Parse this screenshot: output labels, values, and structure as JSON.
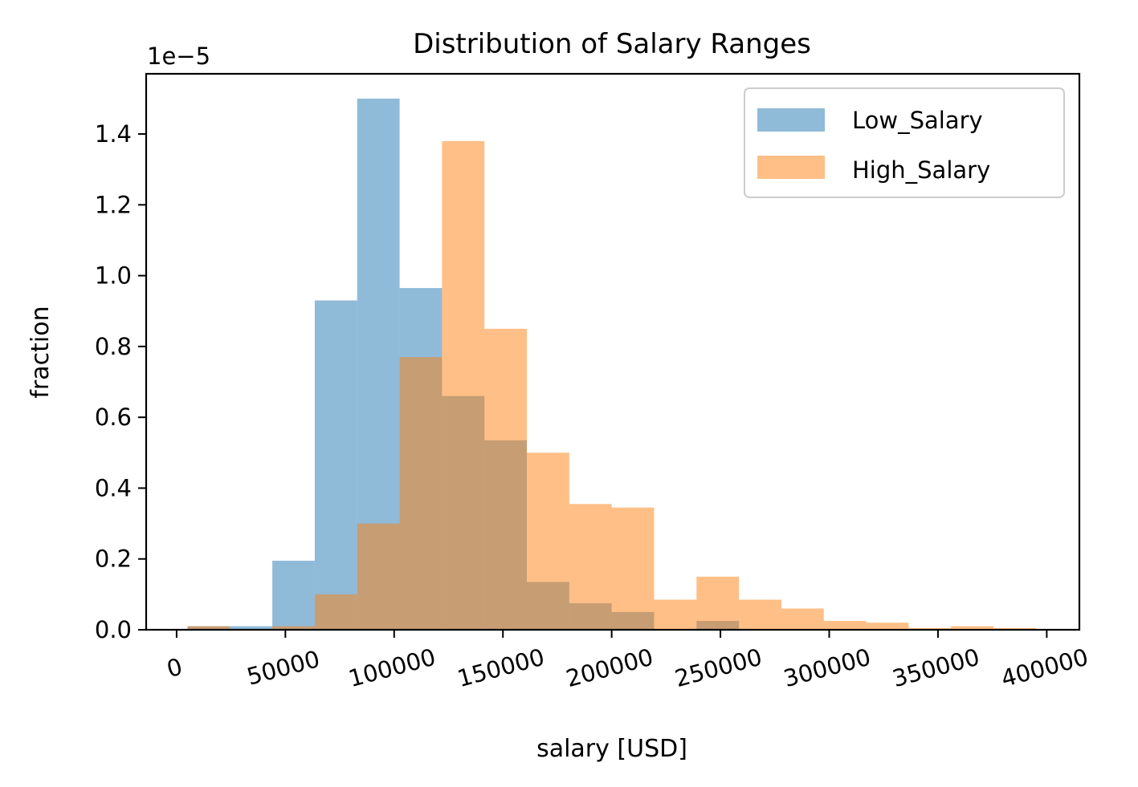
{
  "chart_data": {
    "type": "bar",
    "title": "Distribution of Salary Ranges",
    "xlabel": "salary [USD]",
    "ylabel": "fraction",
    "y_offset_label": "1e−5",
    "y_scale": 1e-05,
    "xlim": [
      -14000,
      415000
    ],
    "ylim": [
      0,
      1.57
    ],
    "x_ticks": [
      0,
      50000,
      100000,
      150000,
      200000,
      250000,
      300000,
      350000,
      400000
    ],
    "x_tick_labels": [
      "0",
      "50000",
      "100000",
      "150000",
      "200000",
      "250000",
      "300000",
      "350000",
      "400000"
    ],
    "x_tick_rotation_deg": 15,
    "y_ticks": [
      0.0,
      0.2,
      0.4,
      0.6,
      0.8,
      1.0,
      1.2,
      1.4
    ],
    "y_tick_labels": [
      "0.0",
      "0.2",
      "0.4",
      "0.6",
      "0.8",
      "1.0",
      "1.2",
      "1.4"
    ],
    "legend_position": "top-right",
    "grid": false,
    "series": [
      {
        "name": "Low_Salary",
        "color": "#1f77b4",
        "opacity": 0.5,
        "bins": [
          {
            "x0": 5000,
            "x1": 24500,
            "value": 0.01
          },
          {
            "x0": 24500,
            "x1": 44000,
            "value": 0.01
          },
          {
            "x0": 44000,
            "x1": 63500,
            "value": 0.195
          },
          {
            "x0": 63500,
            "x1": 83000,
            "value": 0.93
          },
          {
            "x0": 83000,
            "x1": 102500,
            "value": 1.5
          },
          {
            "x0": 102500,
            "x1": 122000,
            "value": 0.965
          },
          {
            "x0": 122000,
            "x1": 141500,
            "value": 0.66
          },
          {
            "x0": 141500,
            "x1": 161000,
            "value": 0.535
          },
          {
            "x0": 161000,
            "x1": 180500,
            "value": 0.135
          },
          {
            "x0": 180500,
            "x1": 200000,
            "value": 0.075
          },
          {
            "x0": 200000,
            "x1": 219500,
            "value": 0.05
          },
          {
            "x0": 239000,
            "x1": 258500,
            "value": 0.025
          }
        ]
      },
      {
        "name": "High_Salary",
        "color": "#ff7f0e",
        "opacity": 0.5,
        "bins": [
          {
            "x0": 5000,
            "x1": 24500,
            "value": 0.01
          },
          {
            "x0": 24500,
            "x1": 44000,
            "value": 0.0
          },
          {
            "x0": 44000,
            "x1": 63500,
            "value": 0.01
          },
          {
            "x0": 63500,
            "x1": 83000,
            "value": 0.1
          },
          {
            "x0": 83000,
            "x1": 102500,
            "value": 0.3
          },
          {
            "x0": 102500,
            "x1": 122000,
            "value": 0.77
          },
          {
            "x0": 122000,
            "x1": 141500,
            "value": 1.38
          },
          {
            "x0": 141500,
            "x1": 161000,
            "value": 0.85
          },
          {
            "x0": 161000,
            "x1": 180500,
            "value": 0.5
          },
          {
            "x0": 180500,
            "x1": 200000,
            "value": 0.355
          },
          {
            "x0": 200000,
            "x1": 219500,
            "value": 0.345
          },
          {
            "x0": 219500,
            "x1": 239000,
            "value": 0.085
          },
          {
            "x0": 239000,
            "x1": 258500,
            "value": 0.15
          },
          {
            "x0": 258500,
            "x1": 278000,
            "value": 0.085
          },
          {
            "x0": 278000,
            "x1": 297500,
            "value": 0.06
          },
          {
            "x0": 297500,
            "x1": 317000,
            "value": 0.025
          },
          {
            "x0": 317000,
            "x1": 336500,
            "value": 0.02
          },
          {
            "x0": 336500,
            "x1": 356000,
            "value": 0.005
          },
          {
            "x0": 356000,
            "x1": 375500,
            "value": 0.01
          },
          {
            "x0": 375500,
            "x1": 395000,
            "value": 0.005
          }
        ]
      }
    ]
  }
}
